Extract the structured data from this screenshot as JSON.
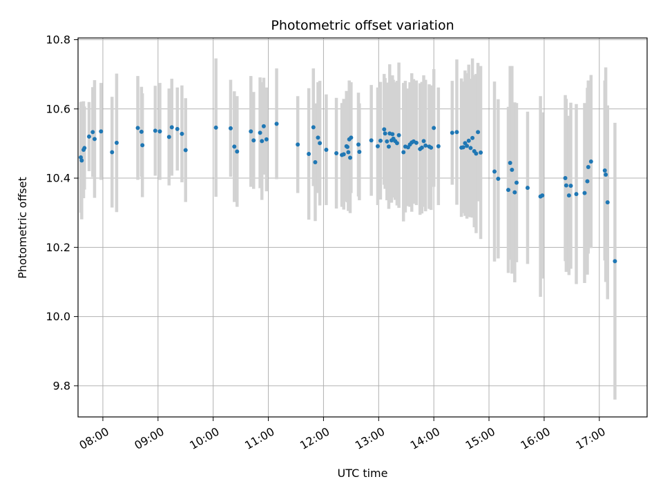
{
  "chart_data": {
    "type": "scatter",
    "title": "Photometric offset variation",
    "xlabel": "UTC time",
    "ylabel": "Photometric offset",
    "grid": true,
    "colors": {
      "point": "#1f77b4",
      "errorbar": "#d3d3d3",
      "grid": "#b0b0b0"
    },
    "xlim": [
      "07:33",
      "17:52"
    ],
    "ylim": [
      9.71,
      10.805
    ],
    "x_ticks": [
      "08:00",
      "09:00",
      "10:00",
      "11:00",
      "12:00",
      "13:00",
      "14:00",
      "15:00",
      "16:00",
      "17:00"
    ],
    "y_ticks": [
      "9.8",
      "10.0",
      "10.2",
      "10.4",
      "10.6",
      "10.8"
    ],
    "series": [
      {
        "x": [
          "07:36",
          "07:37",
          "07:39",
          "07:40",
          "07:45",
          "07:49",
          "07:51",
          "07:58",
          "08:10",
          "08:15",
          "08:38",
          "08:42",
          "08:43",
          "08:57",
          "09:02",
          "09:12",
          "09:15",
          "09:21",
          "09:26",
          "09:30",
          "10:03",
          "10:19",
          "10:23",
          "10:26",
          "10:41",
          "10:44",
          "10:51",
          "10:53",
          "10:55",
          "10:58",
          "11:09",
          "11:32",
          "11:44",
          "11:49",
          "11:51",
          "11:54",
          "11:56",
          "12:03",
          "12:14",
          "12:20",
          "12:22",
          "12:25",
          "12:26",
          "12:27",
          "12:28",
          "12:29",
          "12:30",
          "12:38",
          "12:39",
          "12:52",
          "12:59",
          "13:02",
          "13:06",
          "13:07",
          "13:09",
          "13:11",
          "13:12",
          "13:14",
          "13:15",
          "13:16",
          "13:18",
          "13:20",
          "13:22",
          "13:27",
          "13:29",
          "13:32",
          "13:34",
          "13:36",
          "13:38",
          "13:41",
          "13:45",
          "13:47",
          "13:49",
          "13:51",
          "13:55",
          "13:57",
          "14:00",
          "14:05",
          "14:20",
          "14:25",
          "14:30",
          "14:32",
          "14:34",
          "14:36",
          "14:38",
          "14:40",
          "14:42",
          "14:44",
          "14:46",
          "14:48",
          "14:51",
          "15:06",
          "15:10",
          "15:21",
          "15:23",
          "15:25",
          "15:28",
          "15:30",
          "15:42",
          "15:56",
          "15:58",
          "16:23",
          "16:24",
          "16:27",
          "16:29",
          "16:35",
          "16:44",
          "16:47",
          "16:48",
          "16:51",
          "17:06",
          "17:07",
          "17:09",
          "17:17"
        ],
        "y": [
          10.46,
          10.451,
          10.482,
          10.487,
          10.52,
          10.533,
          10.513,
          10.535,
          10.475,
          10.502,
          10.545,
          10.534,
          10.495,
          10.537,
          10.535,
          10.519,
          10.547,
          10.542,
          10.528,
          10.481,
          10.546,
          10.544,
          10.491,
          10.477,
          10.535,
          10.509,
          10.531,
          10.507,
          10.55,
          10.512,
          10.557,
          10.497,
          10.47,
          10.547,
          10.446,
          10.517,
          10.501,
          10.482,
          10.472,
          10.467,
          10.469,
          10.492,
          10.49,
          10.475,
          10.512,
          10.459,
          10.517,
          10.497,
          10.476,
          10.509,
          10.492,
          10.508,
          10.541,
          10.529,
          10.506,
          10.491,
          10.529,
          10.509,
          10.527,
          10.514,
          10.507,
          10.501,
          10.524,
          10.475,
          10.491,
          10.489,
          10.497,
          10.503,
          10.506,
          10.502,
          10.484,
          10.488,
          10.507,
          10.494,
          10.491,
          10.488,
          10.545,
          10.492,
          10.531,
          10.533,
          10.488,
          10.489,
          10.501,
          10.493,
          10.508,
          10.487,
          10.516,
          10.478,
          10.471,
          10.533,
          10.474,
          10.419,
          10.398,
          10.366,
          10.444,
          10.424,
          10.359,
          10.387,
          10.372,
          10.347,
          10.35,
          10.4,
          10.379,
          10.35,
          10.378,
          10.354,
          10.357,
          10.391,
          10.432,
          10.448,
          10.422,
          10.41,
          10.33,
          10.16
        ],
        "yerr": [
          0.16,
          0.17,
          0.14,
          0.12,
          0.1,
          0.13,
          0.17,
          0.14,
          0.16,
          0.2,
          0.15,
          0.13,
          0.15,
          0.13,
          0.14,
          0.14,
          0.14,
          0.12,
          0.14,
          0.15,
          0.2,
          0.14,
          0.16,
          0.16,
          0.16,
          0.14,
          0.16,
          0.17,
          0.14,
          0.15,
          0.16,
          0.14,
          0.19,
          0.17,
          0.17,
          0.16,
          0.18,
          0.16,
          0.16,
          0.15,
          0.16,
          0.16,
          0.16,
          0.17,
          0.17,
          0.16,
          0.16,
          0.15,
          0.14,
          0.16,
          0.17,
          0.17,
          0.16,
          0.16,
          0.17,
          0.18,
          0.2,
          0.18,
          0.17,
          0.17,
          0.17,
          0.18,
          0.21,
          0.2,
          0.19,
          0.17,
          0.18,
          0.2,
          0.18,
          0.18,
          0.19,
          0.19,
          0.19,
          0.19,
          0.18,
          0.18,
          0.17,
          0.17,
          0.15,
          0.21,
          0.2,
          0.19,
          0.21,
          0.21,
          0.22,
          0.2,
          0.23,
          0.22,
          0.23,
          0.2,
          0.25,
          0.26,
          0.23,
          0.24,
          0.28,
          0.3,
          0.26,
          0.23,
          0.22,
          0.29,
          0.24,
          0.24,
          0.25,
          0.23,
          0.24,
          0.26,
          0.26,
          0.27,
          0.25,
          0.25,
          0.26,
          0.31,
          0.28,
          0.4
        ]
      }
    ]
  }
}
